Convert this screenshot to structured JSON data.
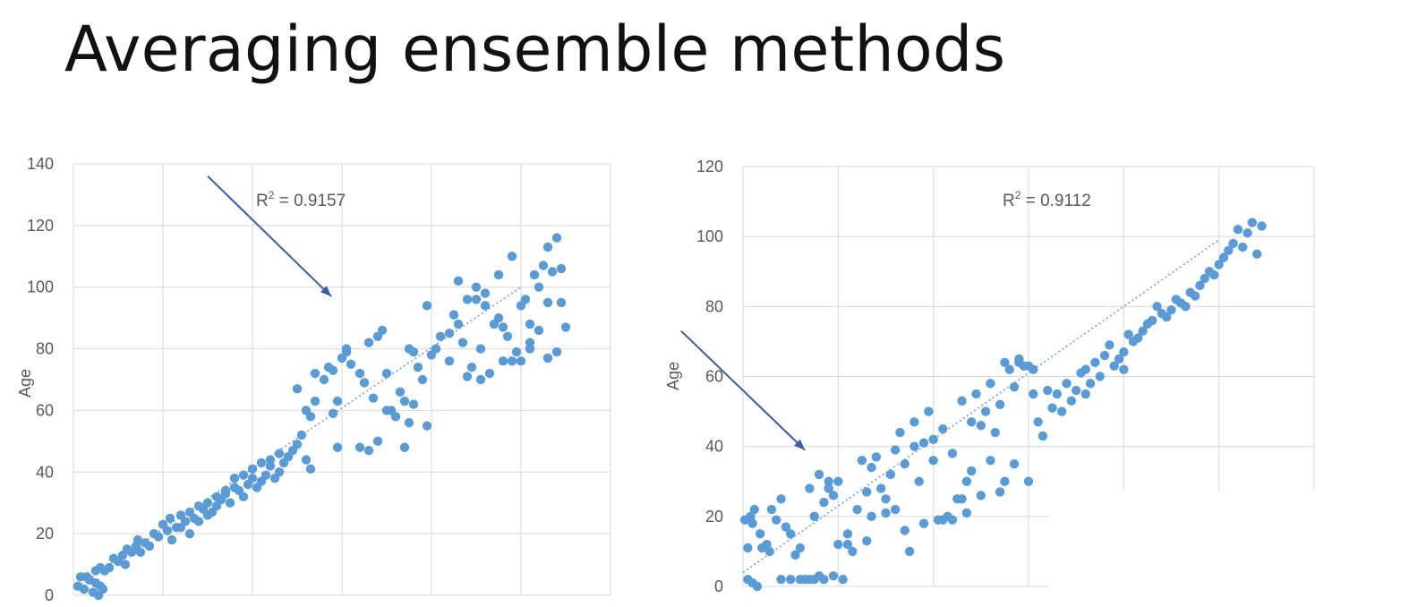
{
  "slide": {
    "title": "Averaging ensemble methods"
  },
  "chart_data": [
    {
      "type": "scatter",
      "ylabel": "Age",
      "yticks": [
        "0",
        "20",
        "40",
        "60",
        "80",
        "100",
        "120",
        "140"
      ],
      "ylim": [
        0,
        140
      ],
      "xlim": [
        0,
        6
      ],
      "grid": true,
      "trendline": {
        "style": "dotted",
        "x": [
          0,
          5
        ],
        "y": [
          2,
          100
        ]
      },
      "annotation": {
        "prefix": "R",
        "sup": "2",
        "value": " = 0.9157"
      },
      "arrow": {
        "from": [
          1.5,
          136
        ],
        "to": [
          2.88,
          97
        ]
      },
      "colors": {
        "points": "#5b9bd5",
        "arrow": "#3a5da6",
        "grid": "#d9d9d9",
        "axis_text": "#595959"
      },
      "points": [
        [
          0.05,
          3
        ],
        [
          0.08,
          6
        ],
        [
          0.12,
          2
        ],
        [
          0.18,
          5
        ],
        [
          0.22,
          1
        ],
        [
          0.25,
          4
        ],
        [
          0.28,
          0
        ],
        [
          0.3,
          3
        ],
        [
          0.33,
          2
        ],
        [
          0.15,
          6
        ],
        [
          0.25,
          8
        ],
        [
          0.3,
          9
        ],
        [
          0.35,
          8
        ],
        [
          0.4,
          9
        ],
        [
          0.45,
          12
        ],
        [
          0.5,
          11
        ],
        [
          0.55,
          13
        ],
        [
          0.58,
          10
        ],
        [
          0.6,
          15
        ],
        [
          0.65,
          14
        ],
        [
          0.7,
          16
        ],
        [
          0.72,
          18
        ],
        [
          0.75,
          14
        ],
        [
          0.8,
          17
        ],
        [
          0.85,
          16
        ],
        [
          0.9,
          20
        ],
        [
          0.95,
          19
        ],
        [
          1.0,
          23
        ],
        [
          1.05,
          21
        ],
        [
          1.08,
          25
        ],
        [
          1.1,
          18
        ],
        [
          1.15,
          22
        ],
        [
          1.2,
          26
        ],
        [
          1.25,
          24
        ],
        [
          1.3,
          27
        ],
        [
          1.35,
          25
        ],
        [
          1.4,
          29
        ],
        [
          1.45,
          28
        ],
        [
          1.5,
          30
        ],
        [
          1.55,
          27
        ],
        [
          1.6,
          32
        ],
        [
          1.65,
          31
        ],
        [
          1.7,
          33
        ],
        [
          1.75,
          30
        ],
        [
          1.8,
          35
        ],
        [
          1.85,
          34
        ],
        [
          1.9,
          32
        ],
        [
          1.95,
          36
        ],
        [
          2.0,
          38
        ],
        [
          2.05,
          35
        ],
        [
          2.1,
          37
        ],
        [
          2.15,
          39
        ],
        [
          2.2,
          42
        ],
        [
          2.25,
          38
        ],
        [
          2.3,
          40
        ],
        [
          2.35,
          43
        ],
        [
          2.4,
          45
        ],
        [
          2.45,
          47
        ],
        [
          1.2,
          22
        ],
        [
          1.3,
          20
        ],
        [
          1.4,
          24
        ],
        [
          1.5,
          26
        ],
        [
          1.6,
          29
        ],
        [
          1.7,
          34
        ],
        [
          1.8,
          38
        ],
        [
          1.9,
          39
        ],
        [
          2.0,
          41
        ],
        [
          2.1,
          43
        ],
        [
          2.2,
          44
        ],
        [
          2.3,
          46
        ],
        [
          2.5,
          49
        ],
        [
          2.55,
          52
        ],
        [
          2.5,
          67
        ],
        [
          2.6,
          60
        ],
        [
          2.6,
          44
        ],
        [
          2.65,
          58
        ],
        [
          2.7,
          63
        ],
        [
          2.65,
          41
        ],
        [
          2.7,
          72
        ],
        [
          2.8,
          70
        ],
        [
          2.85,
          74
        ],
        [
          2.9,
          59
        ],
        [
          2.95,
          63
        ],
        [
          2.95,
          48
        ],
        [
          2.9,
          73
        ],
        [
          3.0,
          77
        ],
        [
          3.05,
          79
        ],
        [
          3.05,
          80
        ],
        [
          3.1,
          75
        ],
        [
          3.2,
          72
        ],
        [
          3.25,
          69
        ],
        [
          3.3,
          82
        ],
        [
          3.35,
          64
        ],
        [
          3.4,
          84
        ],
        [
          3.45,
          86
        ],
        [
          3.5,
          72
        ],
        [
          3.55,
          60
        ],
        [
          3.6,
          58
        ],
        [
          3.65,
          66
        ],
        [
          3.2,
          48
        ],
        [
          3.3,
          47
        ],
        [
          3.4,
          50
        ],
        [
          3.7,
          63
        ],
        [
          3.75,
          80
        ],
        [
          3.8,
          79
        ],
        [
          3.85,
          74
        ],
        [
          3.9,
          70
        ],
        [
          3.95,
          55
        ],
        [
          3.8,
          62
        ],
        [
          3.7,
          48
        ],
        [
          3.75,
          56
        ],
        [
          3.5,
          60
        ],
        [
          4.0,
          78
        ],
        [
          4.1,
          84
        ],
        [
          4.2,
          76
        ],
        [
          4.25,
          91
        ],
        [
          4.3,
          88
        ],
        [
          4.35,
          82
        ],
        [
          4.4,
          96
        ],
        [
          4.45,
          74
        ],
        [
          4.5,
          100
        ],
        [
          4.55,
          80
        ],
        [
          4.6,
          94
        ],
        [
          4.65,
          72
        ],
        [
          4.7,
          88
        ],
        [
          4.75,
          90
        ],
        [
          4.8,
          76
        ],
        [
          4.85,
          84
        ],
        [
          4.9,
          110
        ],
        [
          4.95,
          79
        ],
        [
          5.0,
          94
        ],
        [
          5.05,
          96
        ],
        [
          5.1,
          88
        ],
        [
          5.15,
          104
        ],
        [
          5.2,
          100
        ],
        [
          5.25,
          107
        ],
        [
          5.3,
          113
        ],
        [
          5.35,
          105
        ],
        [
          5.4,
          116
        ],
        [
          5.45,
          95
        ],
        [
          5.5,
          87
        ],
        [
          5.2,
          86
        ],
        [
          5.1,
          82
        ],
        [
          5.3,
          77
        ],
        [
          5.4,
          79
        ],
        [
          5.0,
          76
        ],
        [
          4.4,
          71
        ],
        [
          4.55,
          70
        ],
        [
          4.2,
          85
        ],
        [
          4.6,
          98
        ],
        [
          4.8,
          87
        ],
        [
          4.9,
          76
        ],
        [
          5.45,
          106
        ],
        [
          5.3,
          95
        ],
        [
          5.1,
          80
        ],
        [
          4.05,
          80
        ],
        [
          3.95,
          94
        ],
        [
          4.3,
          102
        ],
        [
          4.5,
          96
        ],
        [
          4.75,
          104
        ]
      ]
    },
    {
      "type": "scatter",
      "ylabel": "Age",
      "yticks": [
        "0",
        "20",
        "40",
        "60",
        "80",
        "100",
        "120"
      ],
      "ylim": [
        0,
        120
      ],
      "xlim": [
        0,
        6
      ],
      "grid": true,
      "trendline": {
        "style": "dotted",
        "x": [
          0,
          5
        ],
        "y": [
          4,
          99
        ]
      },
      "annotation": {
        "prefix": "R",
        "sup": "2",
        "value": " = 0.9112"
      },
      "arrow": {
        "from": [
          -0.65,
          73
        ],
        "to": [
          0.65,
          39
        ]
      },
      "colors": {
        "points": "#5b9bd5",
        "arrow": "#3a5da6",
        "grid": "#d9d9d9",
        "axis_text": "#595959"
      },
      "points": [
        [
          0.02,
          19
        ],
        [
          0.05,
          11
        ],
        [
          0.08,
          20
        ],
        [
          0.1,
          18
        ],
        [
          0.12,
          22
        ],
        [
          0.05,
          2
        ],
        [
          0.1,
          1
        ],
        [
          0.15,
          0
        ],
        [
          0.18,
          15
        ],
        [
          0.2,
          11
        ],
        [
          0.25,
          12
        ],
        [
          0.28,
          10
        ],
        [
          0.3,
          22
        ],
        [
          0.35,
          19
        ],
        [
          0.4,
          25
        ],
        [
          0.45,
          17
        ],
        [
          0.5,
          15
        ],
        [
          0.55,
          9
        ],
        [
          0.6,
          2
        ],
        [
          0.65,
          2
        ],
        [
          0.7,
          2
        ],
        [
          0.75,
          2
        ],
        [
          0.8,
          3
        ],
        [
          0.85,
          2
        ],
        [
          0.9,
          28
        ],
        [
          0.95,
          3
        ],
        [
          0.4,
          2
        ],
        [
          0.5,
          2
        ],
        [
          0.6,
          11
        ],
        [
          0.7,
          28
        ],
        [
          0.75,
          20
        ],
        [
          0.8,
          32
        ],
        [
          0.85,
          24
        ],
        [
          0.9,
          30
        ],
        [
          0.95,
          26
        ],
        [
          1.0,
          30
        ],
        [
          1.05,
          2
        ],
        [
          1.1,
          12
        ],
        [
          1.15,
          10
        ],
        [
          1.2,
          22
        ],
        [
          1.25,
          36
        ],
        [
          1.3,
          27
        ],
        [
          1.35,
          20
        ],
        [
          1.4,
          37
        ],
        [
          1.45,
          28
        ],
        [
          1.5,
          25
        ],
        [
          1.55,
          32
        ],
        [
          1.6,
          22
        ],
        [
          1.65,
          44
        ],
        [
          1.7,
          35
        ],
        [
          1.75,
          10
        ],
        [
          1.8,
          47
        ],
        [
          1.85,
          30
        ],
        [
          1.9,
          41
        ],
        [
          1.95,
          50
        ],
        [
          2.0,
          36
        ],
        [
          2.05,
          19
        ],
        [
          2.1,
          45
        ],
        [
          2.15,
          20
        ],
        [
          2.2,
          38
        ],
        [
          2.25,
          25
        ],
        [
          2.3,
          53
        ],
        [
          2.35,
          30
        ],
        [
          2.4,
          47
        ],
        [
          2.45,
          55
        ],
        [
          2.5,
          46
        ],
        [
          2.55,
          50
        ],
        [
          2.6,
          58
        ],
        [
          2.65,
          44
        ],
        [
          2.7,
          52
        ],
        [
          2.75,
          64
        ],
        [
          2.8,
          62
        ],
        [
          2.85,
          57
        ],
        [
          2.9,
          65
        ],
        [
          2.95,
          63
        ],
        [
          3.0,
          30
        ],
        [
          3.05,
          55
        ],
        [
          3.1,
          47
        ],
        [
          3.15,
          43
        ],
        [
          3.2,
          56
        ],
        [
          3.25,
          51
        ],
        [
          3.3,
          55
        ],
        [
          3.35,
          50
        ],
        [
          3.4,
          58
        ],
        [
          3.45,
          53
        ],
        [
          3.5,
          56
        ],
        [
          3.55,
          61
        ],
        [
          3.6,
          62
        ],
        [
          3.65,
          58
        ],
        [
          3.7,
          64
        ],
        [
          3.75,
          60
        ],
        [
          3.8,
          66
        ],
        [
          3.85,
          69
        ],
        [
          3.9,
          63
        ],
        [
          3.95,
          65
        ],
        [
          4.0,
          67
        ],
        [
          4.05,
          72
        ],
        [
          4.1,
          70
        ],
        [
          4.15,
          71
        ],
        [
          4.2,
          73
        ],
        [
          4.25,
          75
        ],
        [
          4.3,
          76
        ],
        [
          4.35,
          80
        ],
        [
          4.4,
          78
        ],
        [
          4.45,
          77
        ],
        [
          4.5,
          79
        ],
        [
          4.55,
          82
        ],
        [
          4.6,
          81
        ],
        [
          4.65,
          80
        ],
        [
          4.7,
          84
        ],
        [
          4.75,
          83
        ],
        [
          4.8,
          86
        ],
        [
          4.85,
          88
        ],
        [
          4.9,
          90
        ],
        [
          4.95,
          89
        ],
        [
          5.0,
          92
        ],
        [
          5.05,
          94
        ],
        [
          5.1,
          96
        ],
        [
          5.15,
          98
        ],
        [
          5.2,
          102
        ],
        [
          5.25,
          97
        ],
        [
          5.3,
          101
        ],
        [
          5.35,
          104
        ],
        [
          5.4,
          95
        ],
        [
          5.45,
          103
        ],
        [
          2.1,
          19
        ],
        [
          2.2,
          19
        ],
        [
          2.3,
          25
        ],
        [
          2.35,
          21
        ],
        [
          2.4,
          33
        ],
        [
          2.5,
          26
        ],
        [
          2.6,
          36
        ],
        [
          2.7,
          27
        ],
        [
          2.75,
          30
        ],
        [
          2.85,
          35
        ],
        [
          3.0,
          63
        ],
        [
          3.05,
          62
        ],
        [
          2.9,
          64
        ],
        [
          1.0,
          12
        ],
        [
          1.1,
          15
        ],
        [
          1.3,
          13
        ],
        [
          1.5,
          21
        ],
        [
          1.7,
          16
        ],
        [
          1.9,
          18
        ],
        [
          1.35,
          34
        ],
        [
          1.6,
          39
        ],
        [
          1.8,
          40
        ],
        [
          2.0,
          42
        ],
        [
          3.6,
          55
        ],
        [
          4.0,
          62
        ]
      ]
    }
  ]
}
